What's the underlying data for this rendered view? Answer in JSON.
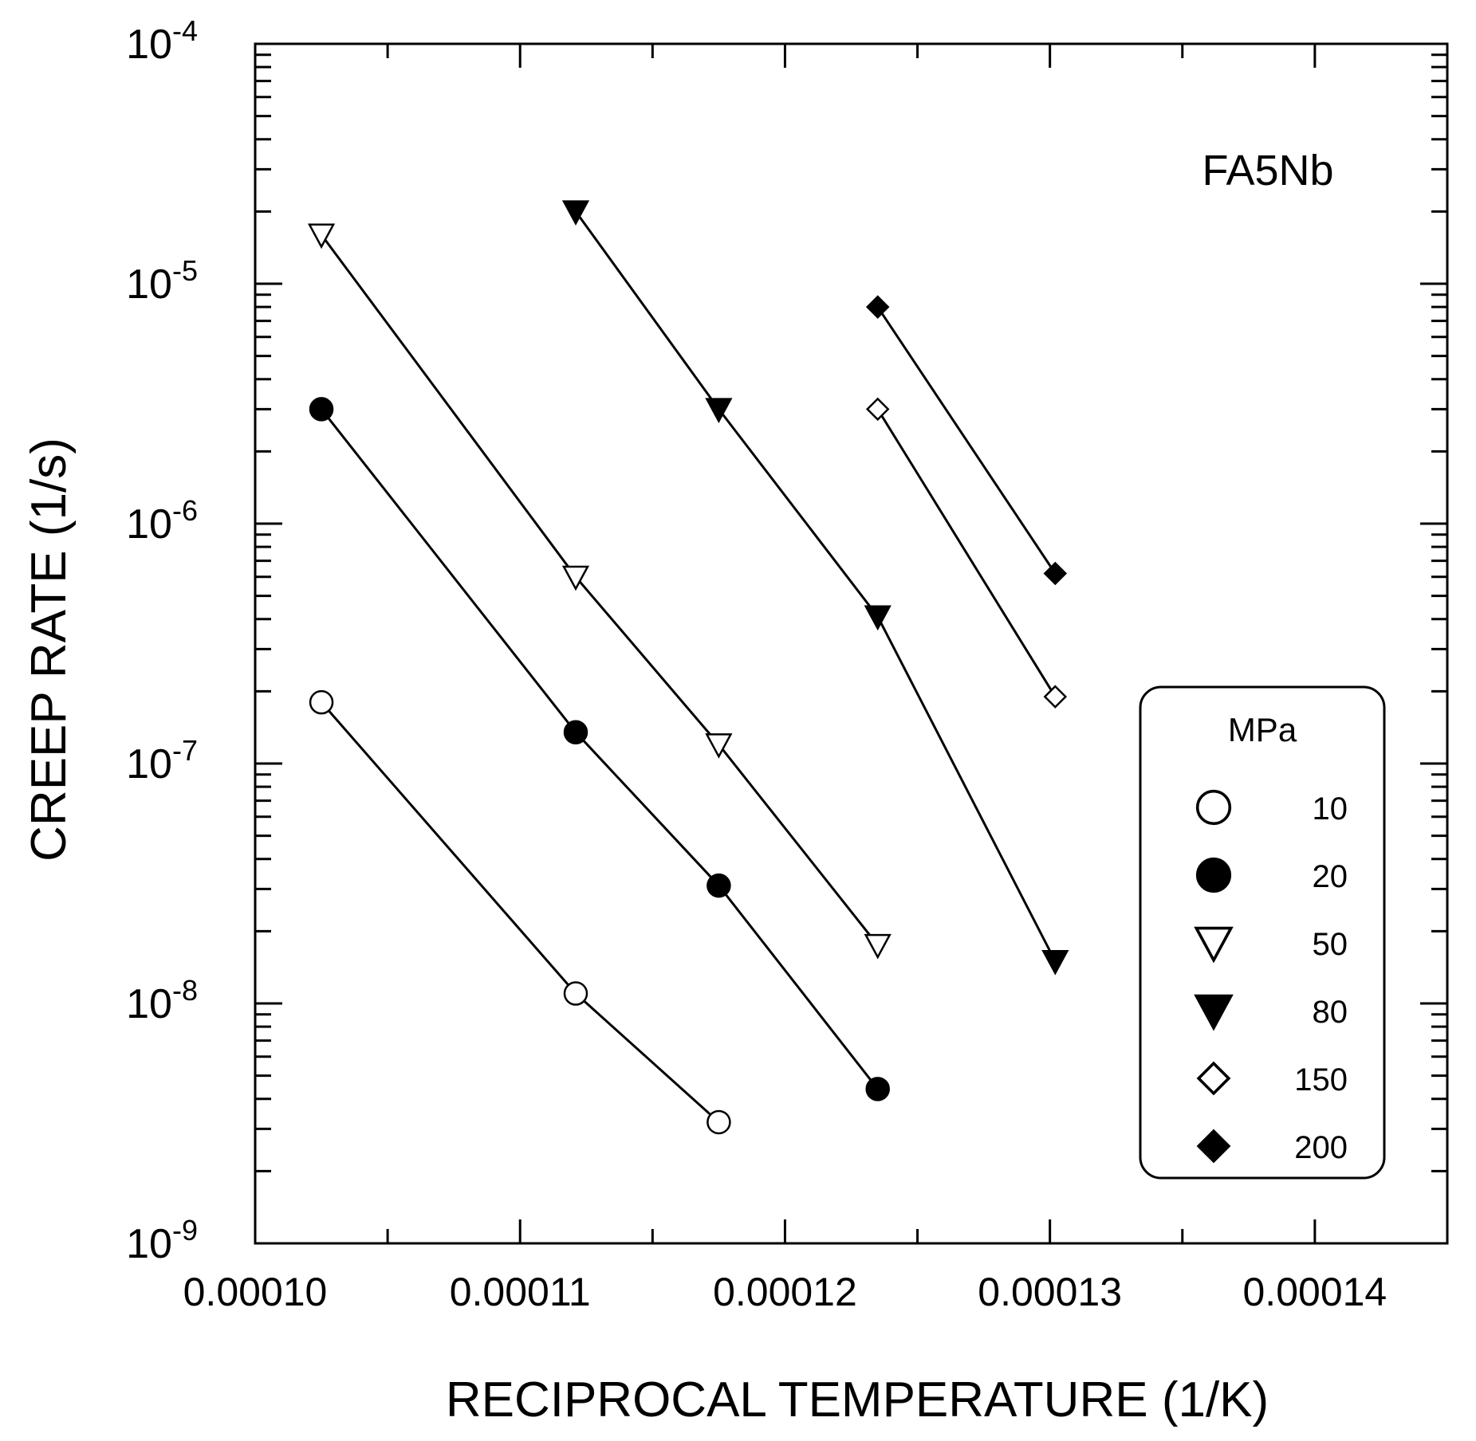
{
  "chart_data": {
    "type": "scatter",
    "title": "",
    "annotation": "FA5Nb",
    "xlabel": "RECIPROCAL TEMPERATURE (1/K)",
    "ylabel": "CREEP RATE (1/s)",
    "xscale": "linear",
    "yscale": "log",
    "xlim": [
      0.0001,
      0.000145
    ],
    "ylim": [
      1e-09,
      0.0001
    ],
    "x_tick_labels": [
      "0.00010",
      "0.00011",
      "0.00012",
      "0.00013",
      "0.00014"
    ],
    "y_tick_labels": [
      {
        "base": "10",
        "exp": "-9"
      },
      {
        "base": "10",
        "exp": "-8"
      },
      {
        "base": "10",
        "exp": "-7"
      },
      {
        "base": "10",
        "exp": "-6"
      },
      {
        "base": "10",
        "exp": "-5"
      },
      {
        "base": "10",
        "exp": "-4"
      }
    ],
    "grid": false,
    "legend": {
      "title": "MPa",
      "position": "bottom-right",
      "entries": [
        "10",
        "20",
        "50",
        "80",
        "150",
        "200"
      ]
    },
    "series": [
      {
        "name": "10",
        "marker": "circle-open",
        "x": [
          0.0001025,
          0.0001121,
          0.0001175
        ],
        "y": [
          1.8e-07,
          1.1e-08,
          3.2e-09
        ]
      },
      {
        "name": "20",
        "marker": "circle-filled",
        "x": [
          0.0001025,
          0.0001121,
          0.0001175,
          0.0001235
        ],
        "y": [
          3e-06,
          1.35e-07,
          3.1e-08,
          4.4e-09
        ]
      },
      {
        "name": "50",
        "marker": "triangle-down-open",
        "x": [
          0.0001025,
          0.0001121,
          0.0001175,
          0.0001235
        ],
        "y": [
          1.6e-05,
          6e-07,
          1.2e-07,
          1.75e-08
        ]
      },
      {
        "name": "80",
        "marker": "triangle-down-filled",
        "x": [
          0.0001121,
          0.0001175,
          0.0001235,
          0.0001302
        ],
        "y": [
          2e-05,
          3e-06,
          4.1e-07,
          1.5e-08
        ]
      },
      {
        "name": "150",
        "marker": "diamond-open",
        "x": [
          0.0001235,
          0.0001302
        ],
        "y": [
          3e-06,
          1.9e-07
        ]
      },
      {
        "name": "200",
        "marker": "diamond-filled",
        "x": [
          0.0001235,
          0.0001302
        ],
        "y": [
          8e-06,
          6.2e-07
        ]
      }
    ]
  }
}
